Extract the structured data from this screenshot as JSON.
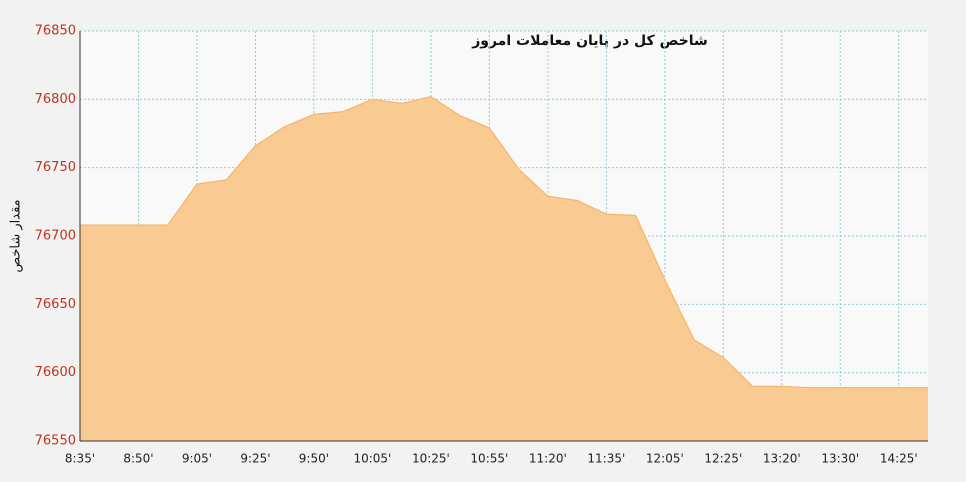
{
  "chart_data": {
    "type": "area",
    "title": "شاخص کل در پایان معاملات امروز",
    "y_label": "مقدار شاخص",
    "categories": [
      "8:35'",
      null,
      "8:50'",
      null,
      "9:05'",
      null,
      "9:25'",
      null,
      "9:50'",
      null,
      "10:05'",
      null,
      "10:25'",
      null,
      "10:55'",
      null,
      "11:20'",
      null,
      "11:35'",
      null,
      "12:05'",
      null,
      "12:25'",
      null,
      "13:20'",
      null,
      "13:30'",
      null,
      "14:25'",
      null
    ],
    "values": [
      76708,
      76708,
      76708,
      76708,
      76738,
      76741,
      76766,
      76780,
      76789,
      76791,
      76800,
      76797,
      76802,
      76788,
      76779,
      76749,
      76729,
      76726,
      76716,
      76715,
      76668,
      76624,
      76611,
      76590,
      76590,
      76589,
      76589,
      76589,
      76589,
      76589
    ],
    "color": "#f9cb92",
    "ylim": [
      76550,
      76850
    ],
    "yticks": [
      76550,
      76600,
      76650,
      76700,
      76750,
      76800,
      76850
    ],
    "grid": true
  }
}
